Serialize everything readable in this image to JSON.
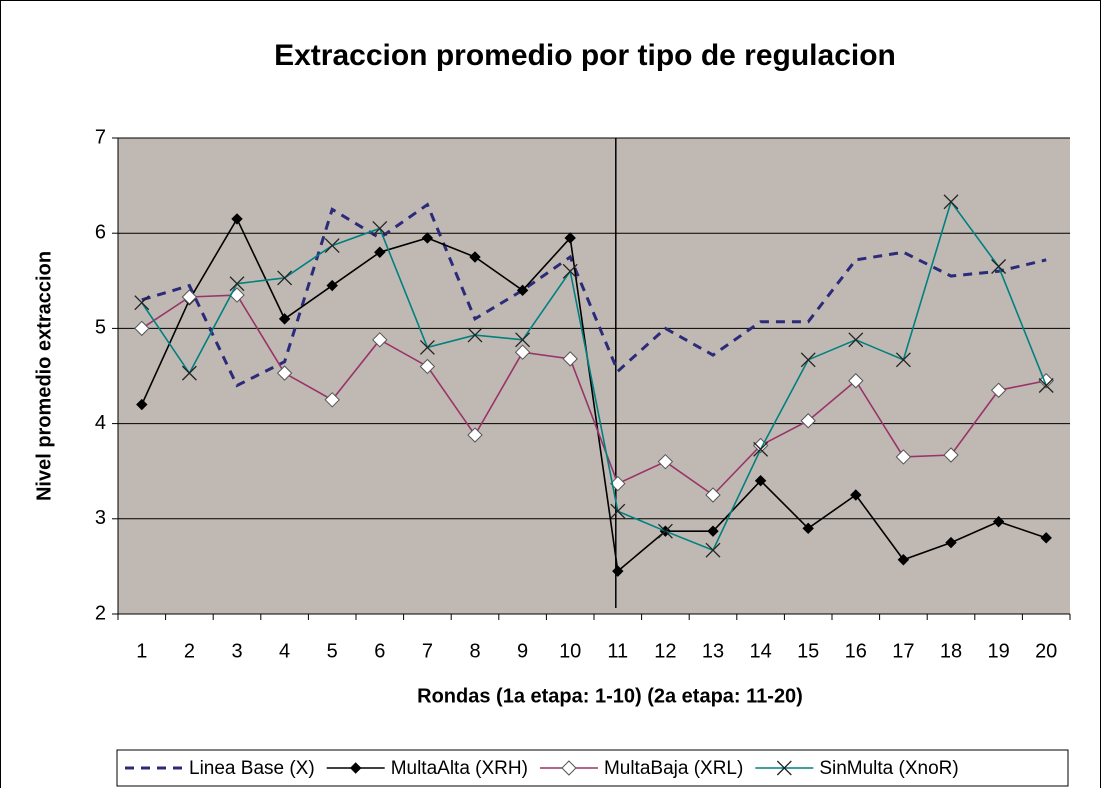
{
  "chart_data": {
    "type": "line",
    "title": "Extraccion promedio por tipo de regulacion",
    "x_label": "Rondas (1a etapa: 1-10)  (2a etapa: 11-20)",
    "y_label": "Nivel promedio extraccion",
    "categories": [
      "1",
      "2",
      "3",
      "4",
      "5",
      "6",
      "7",
      "8",
      "9",
      "10",
      "11",
      "12",
      "13",
      "14",
      "15",
      "16",
      "17",
      "18",
      "19",
      "20"
    ],
    "ylim": [
      2,
      7
    ],
    "yticks": [
      2,
      3,
      4,
      5,
      6,
      7
    ],
    "grid": true,
    "legend": "bottom",
    "series": [
      {
        "name": "Linea Base (X)",
        "color": "#2b2b7a",
        "dash": true,
        "marker": "none",
        "values": [
          5.3,
          5.45,
          4.4,
          4.65,
          6.25,
          5.95,
          6.3,
          5.1,
          5.4,
          5.75,
          4.55,
          5.0,
          4.72,
          5.07,
          5.07,
          5.72,
          5.8,
          5.55,
          5.6,
          5.72
        ]
      },
      {
        "name": "MultaAlta (XRH)",
        "color": "#000000",
        "dash": false,
        "marker": "diamond",
        "values": [
          4.2,
          5.3,
          6.15,
          5.1,
          5.45,
          5.8,
          5.95,
          5.75,
          5.4,
          5.95,
          2.45,
          2.87,
          2.87,
          3.4,
          2.9,
          3.25,
          2.57,
          2.75,
          2.97,
          2.8
        ]
      },
      {
        "name": "MultaBaja (XRL)",
        "color": "#99336a",
        "dash": false,
        "marker": "diamond-open",
        "values": [
          5.0,
          5.33,
          5.35,
          4.53,
          4.25,
          4.88,
          4.6,
          3.88,
          4.75,
          4.68,
          3.37,
          3.6,
          3.25,
          3.77,
          4.03,
          4.45,
          3.65,
          3.67,
          4.35,
          4.45
        ]
      },
      {
        "name": "SinMulta (XnoR)",
        "color": "#008080",
        "dash": false,
        "marker": "x",
        "values": [
          5.27,
          4.53,
          5.47,
          5.53,
          5.87,
          6.05,
          4.8,
          4.93,
          4.88,
          5.6,
          3.08,
          2.87,
          2.67,
          3.73,
          4.67,
          4.88,
          4.67,
          6.33,
          5.65,
          4.4
        ]
      }
    ]
  }
}
